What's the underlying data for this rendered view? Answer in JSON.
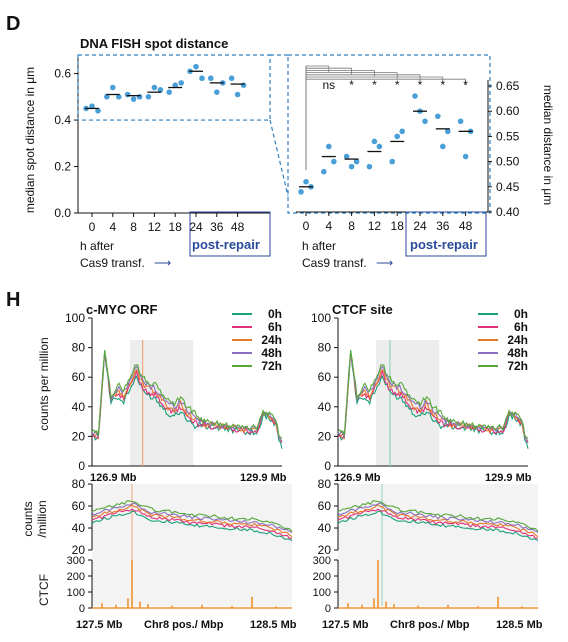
{
  "panel_d": {
    "label": "D",
    "title": "DNA FISH spot distance",
    "ylabel_left": "median spot distance in μm",
    "ylabel_right": "median distance in μm",
    "xlabel_line1": "h after",
    "xlabel_line2": "Cas9 transf.",
    "arrow": "⟶",
    "post_repair": "post-repair",
    "sig_labels": [
      "ns",
      "*",
      "*",
      "*",
      "*",
      "*",
      "*"
    ]
  },
  "panel_h": {
    "label": "H",
    "left_title": "c-MYC ORF",
    "right_title": "CTCF site",
    "ylabel_top": "counts per million",
    "ylabel_mid_1": "counts",
    "ylabel_mid_2": "/million",
    "ylabel_bottom": "CTCF",
    "range_top_left": "126.9 Mb",
    "range_top_right": "129.9 Mb",
    "range_bottom_left": "127.5 Mb",
    "range_bottom_right": "128.5 Mb",
    "xlabel_bottom": "Chr8 pos./ Mbp"
  },
  "chart_data": [
    {
      "type": "scatter",
      "id": "fish-overview",
      "categories": [
        "0",
        "4",
        "8",
        "12",
        "18",
        "24",
        "36",
        "48"
      ],
      "points": [
        [
          0.45,
          0.46,
          0.44
        ],
        [
          0.5,
          0.54,
          0.5
        ],
        [
          0.51,
          0.49,
          0.5
        ],
        [
          0.5,
          0.54,
          0.53
        ],
        [
          0.52,
          0.55,
          0.56
        ],
        [
          0.61,
          0.63,
          0.58
        ],
        [
          0.58,
          0.52,
          0.56
        ],
        [
          0.58,
          0.51,
          0.55
        ]
      ],
      "medians": [
        0.45,
        0.51,
        0.505,
        0.52,
        0.54,
        0.61,
        0.56,
        0.555
      ],
      "ylim": [
        0.0,
        0.68
      ],
      "yticks": [
        "0.0",
        "0.2",
        "0.4",
        "0.6"
      ],
      "xlabel": "",
      "ylabel": "median spot distance in μm",
      "reference_y": 0.4,
      "colors": {
        "point": "#4a9fd8",
        "median": "#111111",
        "frame": "#2f7fc1"
      }
    },
    {
      "type": "scatter",
      "id": "fish-zoom",
      "categories": [
        "0",
        "4",
        "8",
        "12",
        "18",
        "24",
        "36",
        "48"
      ],
      "points": [
        [
          0.44,
          0.46,
          0.45
        ],
        [
          0.48,
          0.53,
          0.5
        ],
        [
          0.51,
          0.49,
          0.5
        ],
        [
          0.49,
          0.54,
          0.53
        ],
        [
          0.5,
          0.55,
          0.56
        ],
        [
          0.63,
          0.6,
          0.58
        ],
        [
          0.59,
          0.53,
          0.56
        ],
        [
          0.58,
          0.51,
          0.56
        ]
      ],
      "medians": [
        0.45,
        0.51,
        0.505,
        0.52,
        0.54,
        0.6,
        0.565,
        0.56
      ],
      "ylim": [
        0.4,
        0.66
      ],
      "yticks": [
        "0.40",
        "0.45",
        "0.50",
        "0.55",
        "0.60",
        "0.65"
      ],
      "ylabel": "median distance in μm",
      "colors": {
        "point": "#4a9fd8",
        "median": "#111111"
      }
    },
    {
      "type": "line",
      "id": "counts-wide",
      "series_names": [
        "0h",
        "6h",
        "24h",
        "48h",
        "72h"
      ],
      "series_colors": [
        "#1aa07a",
        "#e0307a",
        "#e57a2a",
        "#8a6fc0",
        "#55a83a"
      ],
      "x": [
        126.9,
        127.0,
        127.1,
        127.2,
        127.3,
        127.4,
        127.5,
        127.6,
        127.7,
        127.8,
        127.9,
        128.0,
        128.1,
        128.2,
        128.3,
        128.4,
        128.5,
        128.7,
        128.9,
        129.1,
        129.3,
        129.5,
        129.6,
        129.7,
        129.75,
        129.8,
        129.85,
        129.9
      ],
      "profile": [
        22,
        20,
        78,
        45,
        50,
        48,
        56,
        65,
        55,
        52,
        50,
        45,
        40,
        38,
        42,
        36,
        32,
        28,
        27,
        26,
        25,
        24,
        35,
        34,
        32,
        30,
        20,
        15
      ],
      "ylim": [
        0,
        100
      ],
      "yticks": [
        "0",
        "20",
        "40",
        "60",
        "80",
        "100"
      ],
      "xrange_labels": [
        "126.9 Mb",
        "129.9 Mb"
      ],
      "ylabel": "counts per million"
    },
    {
      "type": "line",
      "id": "counts-zoom",
      "series_names": [
        "0h",
        "6h",
        "24h",
        "48h",
        "72h"
      ],
      "series_colors": [
        "#1aa07a",
        "#e0307a",
        "#e57a2a",
        "#8a6fc0",
        "#55a83a"
      ],
      "x": [
        127.5,
        127.6,
        127.7,
        127.8,
        127.9,
        128.0,
        128.1,
        128.2,
        128.3,
        128.4,
        128.5
      ],
      "profile": [
        50,
        55,
        60,
        52,
        50,
        47,
        46,
        44,
        43,
        40,
        33
      ],
      "ylim": [
        20,
        80
      ],
      "yticks": [
        "20",
        "40",
        "60",
        "80"
      ],
      "xrange_labels": [
        "127.5 Mb",
        "128.5 Mb"
      ],
      "ylabel": "counts /million"
    },
    {
      "type": "bar",
      "id": "ctcf-track",
      "ylim": [
        0,
        300
      ],
      "yticks": [
        "0",
        "100",
        "200",
        "300"
      ],
      "ylabel": "CTCF",
      "xlabel": "Chr8 pos./ Mbp",
      "color": "#f0922e"
    }
  ]
}
